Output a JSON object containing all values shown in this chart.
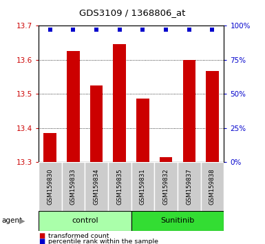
{
  "title": "GDS3109 / 1368806_at",
  "samples": [
    "GSM159830",
    "GSM159833",
    "GSM159834",
    "GSM159835",
    "GSM159831",
    "GSM159832",
    "GSM159837",
    "GSM159838"
  ],
  "transformed_counts": [
    13.385,
    13.625,
    13.525,
    13.645,
    13.487,
    13.315,
    13.6,
    13.568
  ],
  "percentile_ranks": [
    97,
    97,
    97,
    97,
    97,
    97,
    97,
    97
  ],
  "bar_color": "#cc0000",
  "dot_color": "#0000cc",
  "ylim_left": [
    13.3,
    13.7
  ],
  "ylim_right": [
    0,
    100
  ],
  "yticks_left": [
    13.3,
    13.4,
    13.5,
    13.6,
    13.7
  ],
  "yticks_right": [
    0,
    25,
    50,
    75,
    100
  ],
  "groups": [
    {
      "label": "control",
      "indices": [
        0,
        3
      ],
      "color": "#aaffaa"
    },
    {
      "label": "Sunitinib",
      "indices": [
        4,
        7
      ],
      "color": "#33dd33"
    }
  ],
  "legend_items": [
    {
      "color": "#cc0000",
      "label": "transformed count"
    },
    {
      "color": "#0000cc",
      "label": "percentile rank within the sample"
    }
  ],
  "bar_bottom": 13.3,
  "sample_bg_color": "#cccccc",
  "bar_width": 0.55
}
